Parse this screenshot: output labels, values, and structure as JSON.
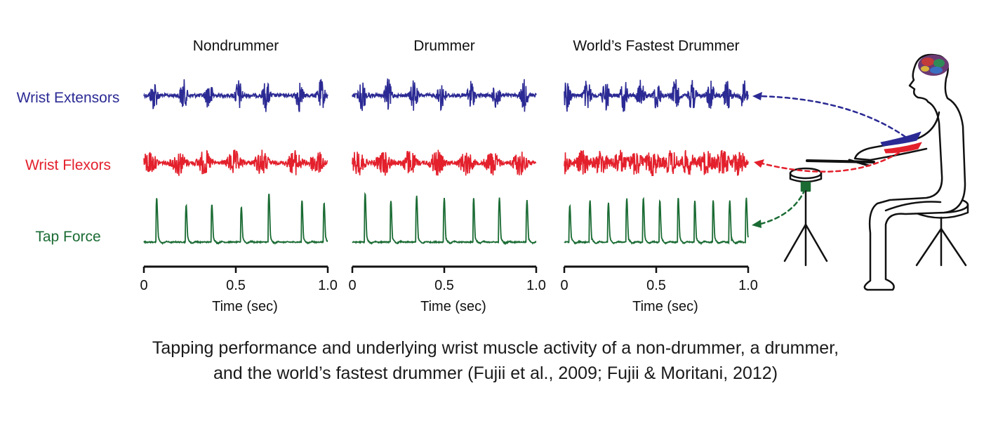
{
  "chart_data": {
    "type": "line",
    "panels": [
      {
        "title": "Nondrummer",
        "tap_times": [
          0.07,
          0.23,
          0.37,
          0.53,
          0.68,
          0.86,
          0.98
        ],
        "tap_peaks": [
          0.9,
          0.75,
          0.78,
          0.72,
          1.0,
          0.85,
          0.8
        ]
      },
      {
        "title": "Drummer",
        "tap_times": [
          0.07,
          0.21,
          0.35,
          0.5,
          0.66,
          0.8,
          0.95
        ],
        "tap_peaks": [
          1.0,
          0.85,
          0.95,
          0.9,
          0.9,
          0.9,
          0.85
        ]
      },
      {
        "title": "World’s Fastest Drummer",
        "tap_times": [
          0.03,
          0.14,
          0.24,
          0.34,
          0.43,
          0.52,
          0.62,
          0.71,
          0.81,
          0.9,
          0.99
        ],
        "tap_peaks": [
          0.75,
          0.85,
          0.8,
          0.9,
          0.9,
          0.85,
          0.9,
          0.85,
          0.85,
          0.85,
          0.9
        ]
      }
    ],
    "rows": [
      {
        "label": "Wrist Extensors",
        "color": "#2b2a94"
      },
      {
        "label": "Wrist Flexors",
        "color": "#e3202c"
      },
      {
        "label": "Tap Force",
        "color": "#1a6b33"
      }
    ],
    "xaxis": {
      "label": "Time (sec)",
      "ticks": [
        "0",
        "0.5",
        "1.0"
      ],
      "xlim": [
        0,
        1.0
      ]
    }
  },
  "caption": {
    "line1": "Tapping performance and underlying wrist muscle activity of a non-drummer, a drummer,",
    "line2": "and the world’s fastest drummer (Fujii et al., 2009; Fujii & Moritani, 2012)"
  },
  "illustration": {
    "icon": "seated-drummer-with-brain-icon"
  }
}
